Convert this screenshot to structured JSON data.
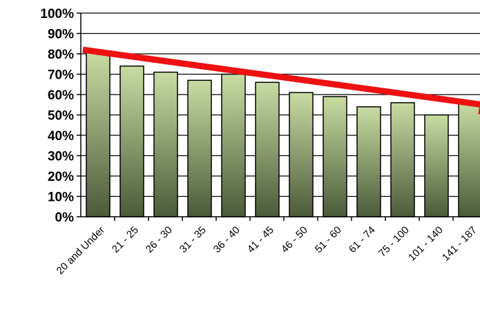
{
  "chart_data": {
    "type": "bar",
    "title": "",
    "xlabel": "",
    "ylabel": "",
    "ylim": [
      0,
      100
    ],
    "y_ticks": [
      "0%",
      "10%",
      "20%",
      "30%",
      "40%",
      "50%",
      "60%",
      "70%",
      "80%",
      "90%",
      "100%"
    ],
    "categories": [
      "20 and Under",
      "21 - 25",
      "26 - 30",
      "31 - 35",
      "36 - 40",
      "41 - 45",
      "46 - 50",
      "51 - 60",
      "61 - 74",
      "75 - 100",
      "101 - 140",
      "141 - 187"
    ],
    "values": [
      81,
      74,
      71,
      67,
      70,
      66,
      61,
      59,
      54,
      56,
      50,
      56
    ],
    "grid": "horizontal",
    "legend": "none",
    "bar_gradient": [
      "#c9dca3",
      "#4b5a39"
    ],
    "trend_arrow": {
      "color": "#ee1111",
      "from": [
        0,
        82
      ],
      "to": [
        11.8,
        54
      ]
    }
  }
}
